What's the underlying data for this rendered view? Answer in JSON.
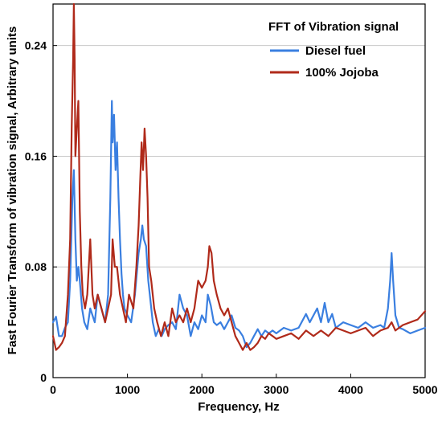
{
  "chart_data": {
    "type": "line",
    "title": "",
    "xlabel": "Frequency, Hz",
    "ylabel": "Fast Fourier Transform of vibration signal, Arbitrary units",
    "xlim": [
      0,
      5000
    ],
    "ylim": [
      0,
      0.27
    ],
    "xticks": [
      0,
      1000,
      2000,
      3000,
      4000,
      5000
    ],
    "xtick_labels": [
      "0",
      "1000",
      "2000",
      "3000",
      "4000",
      "5000"
    ],
    "yticks": [
      0,
      0.08,
      0.16,
      0.24
    ],
    "ytick_labels": [
      "0",
      "0.08",
      "0.16",
      "0.24"
    ],
    "grid": "horizontal",
    "legend": {
      "title": "FFT of Vibration signal",
      "placement": "top-right"
    },
    "series": [
      {
        "name": "Diesel fuel",
        "color": "#3a7fe0",
        "x": [
          0,
          40,
          80,
          120,
          160,
          200,
          230,
          260,
          280,
          300,
          320,
          340,
          360,
          390,
          420,
          460,
          500,
          530,
          560,
          600,
          650,
          700,
          740,
          770,
          790,
          800,
          820,
          840,
          860,
          880,
          900,
          920,
          940,
          960,
          1000,
          1050,
          1100,
          1150,
          1180,
          1200,
          1220,
          1250,
          1280,
          1300,
          1340,
          1380,
          1420,
          1460,
          1500,
          1550,
          1600,
          1650,
          1700,
          1750,
          1800,
          1850,
          1900,
          1950,
          2000,
          2050,
          2080,
          2120,
          2160,
          2200,
          2250,
          2300,
          2350,
          2400,
          2450,
          2500,
          2550,
          2600,
          2650,
          2700,
          2750,
          2800,
          2850,
          2900,
          2950,
          3000,
          3100,
          3200,
          3300,
          3400,
          3450,
          3500,
          3550,
          3600,
          3650,
          3700,
          3750,
          3800,
          3900,
          4000,
          4100,
          4200,
          4300,
          4400,
          4450,
          4500,
          4530,
          4550,
          4570,
          4600,
          4650,
          4700,
          4800,
          4900,
          5000
        ],
        "values": [
          0.04,
          0.044,
          0.03,
          0.03,
          0.036,
          0.04,
          0.07,
          0.13,
          0.15,
          0.1,
          0.07,
          0.08,
          0.07,
          0.05,
          0.04,
          0.035,
          0.05,
          0.045,
          0.04,
          0.06,
          0.05,
          0.04,
          0.06,
          0.13,
          0.2,
          0.17,
          0.19,
          0.15,
          0.17,
          0.13,
          0.1,
          0.075,
          0.06,
          0.05,
          0.045,
          0.04,
          0.06,
          0.09,
          0.1,
          0.11,
          0.1,
          0.095,
          0.07,
          0.06,
          0.04,
          0.03,
          0.035,
          0.03,
          0.035,
          0.038,
          0.04,
          0.035,
          0.06,
          0.05,
          0.045,
          0.03,
          0.04,
          0.035,
          0.045,
          0.04,
          0.06,
          0.052,
          0.04,
          0.038,
          0.04,
          0.035,
          0.04,
          0.045,
          0.036,
          0.034,
          0.03,
          0.022,
          0.025,
          0.03,
          0.035,
          0.03,
          0.034,
          0.032,
          0.034,
          0.032,
          0.036,
          0.034,
          0.036,
          0.046,
          0.04,
          0.045,
          0.05,
          0.04,
          0.054,
          0.04,
          0.046,
          0.036,
          0.04,
          0.038,
          0.036,
          0.04,
          0.036,
          0.038,
          0.036,
          0.05,
          0.07,
          0.09,
          0.07,
          0.045,
          0.036,
          0.035,
          0.032,
          0.034,
          0.036
        ]
      },
      {
        "name": "100% Jojoba",
        "color": "#b02a1a",
        "x": [
          0,
          40,
          80,
          120,
          160,
          200,
          230,
          250,
          270,
          280,
          290,
          300,
          320,
          340,
          360,
          380,
          400,
          430,
          460,
          500,
          530,
          560,
          600,
          650,
          700,
          740,
          780,
          800,
          830,
          860,
          900,
          940,
          980,
          1020,
          1080,
          1120,
          1150,
          1170,
          1190,
          1210,
          1230,
          1250,
          1270,
          1290,
          1320,
          1360,
          1400,
          1450,
          1500,
          1550,
          1600,
          1650,
          1700,
          1750,
          1800,
          1850,
          1900,
          1950,
          2000,
          2050,
          2080,
          2100,
          2130,
          2160,
          2200,
          2250,
          2300,
          2350,
          2400,
          2450,
          2500,
          2550,
          2600,
          2650,
          2700,
          2750,
          2800,
          2850,
          2900,
          2950,
          3000,
          3100,
          3200,
          3300,
          3400,
          3500,
          3600,
          3700,
          3800,
          3900,
          4000,
          4100,
          4200,
          4300,
          4400,
          4500,
          4550,
          4600,
          4700,
          4800,
          4900,
          5000
        ],
        "values": [
          0.03,
          0.02,
          0.022,
          0.025,
          0.03,
          0.06,
          0.1,
          0.18,
          0.23,
          0.27,
          0.23,
          0.16,
          0.18,
          0.2,
          0.12,
          0.08,
          0.06,
          0.05,
          0.06,
          0.1,
          0.06,
          0.05,
          0.06,
          0.05,
          0.04,
          0.05,
          0.06,
          0.1,
          0.08,
          0.08,
          0.06,
          0.05,
          0.04,
          0.06,
          0.05,
          0.08,
          0.11,
          0.14,
          0.17,
          0.15,
          0.18,
          0.16,
          0.13,
          0.08,
          0.07,
          0.05,
          0.04,
          0.03,
          0.04,
          0.03,
          0.05,
          0.04,
          0.045,
          0.04,
          0.05,
          0.04,
          0.05,
          0.07,
          0.065,
          0.07,
          0.08,
          0.095,
          0.09,
          0.07,
          0.06,
          0.05,
          0.045,
          0.05,
          0.04,
          0.03,
          0.025,
          0.02,
          0.025,
          0.02,
          0.022,
          0.025,
          0.03,
          0.028,
          0.032,
          0.03,
          0.028,
          0.03,
          0.032,
          0.028,
          0.034,
          0.03,
          0.034,
          0.03,
          0.036,
          0.034,
          0.032,
          0.034,
          0.036,
          0.03,
          0.034,
          0.036,
          0.04,
          0.034,
          0.038,
          0.04,
          0.042,
          0.048
        ]
      }
    ]
  }
}
